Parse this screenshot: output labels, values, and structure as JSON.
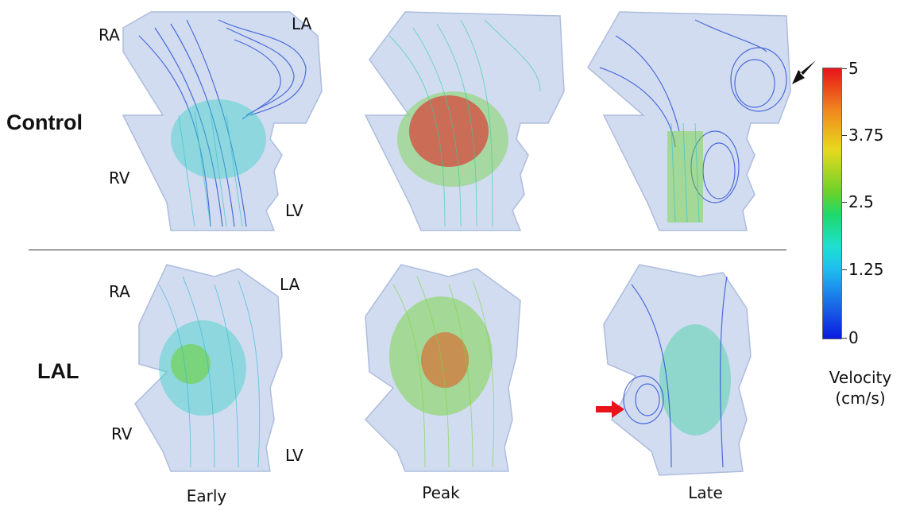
{
  "rows": [
    {
      "label": "Control"
    },
    {
      "label": "LAL"
    }
  ],
  "columns": [
    {
      "label": "Early"
    },
    {
      "label": "Peak"
    },
    {
      "label": "Late"
    }
  ],
  "chambers": {
    "control": {
      "ra": "RA",
      "la": "LA",
      "rv": "RV",
      "lv": "LV"
    },
    "lal": {
      "ra": "RA",
      "la": "LA",
      "rv": "RV",
      "lv": "LV"
    }
  },
  "colorbar": {
    "ticks": [
      "5",
      "3.75",
      "2.5",
      "1.25",
      "0"
    ],
    "title_line1": "Velocity",
    "title_line2": "(cm/s)",
    "colors": [
      "#0a1ae0",
      "#1ec0ee",
      "#1ed86a",
      "#e8d81e",
      "#e8141a"
    ]
  },
  "arrows": {
    "control_late": "black-arrow",
    "lal_late": "red-arrow"
  }
}
